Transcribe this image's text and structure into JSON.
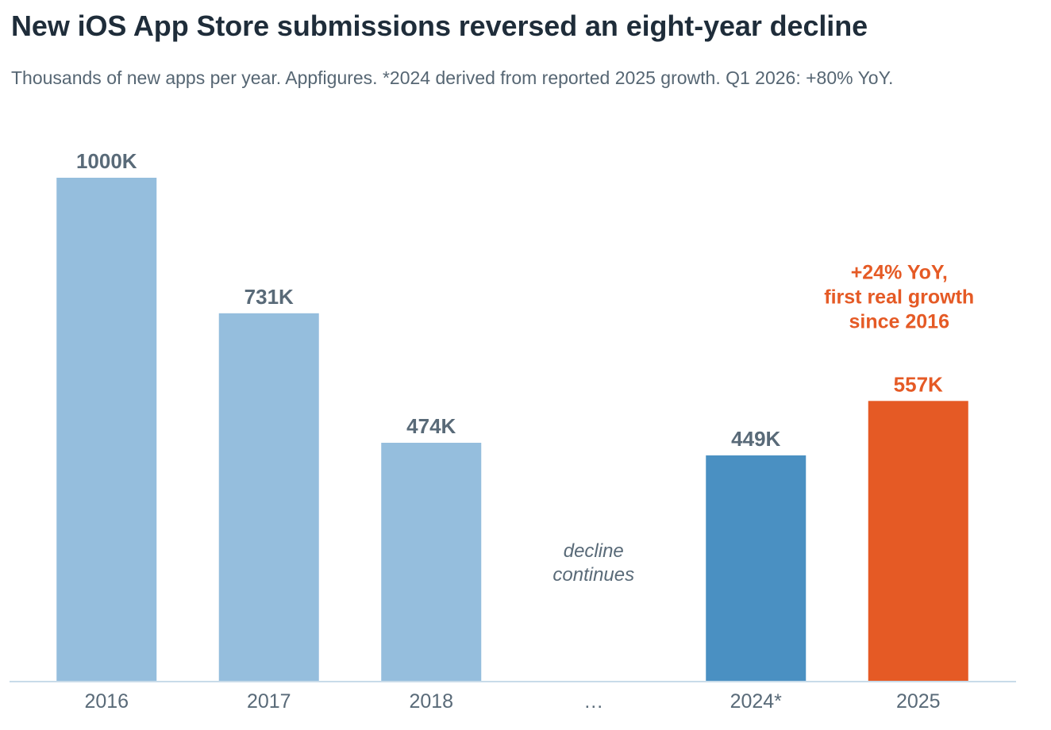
{
  "title": "New iOS App Store submissions reversed an eight-year decline",
  "subtitle": "Thousands of new apps per year. Appfigures. *2024 derived from reported 2025 growth. Q1 2026: +80% YoY.",
  "colors": {
    "historic": "#95bedd",
    "recent": "#4a90c2",
    "highlight": "#e55a25",
    "label": "#596a78",
    "axis": "#c8dbe9"
  },
  "chart_data": {
    "type": "bar",
    "categories": [
      "2016",
      "2017",
      "2018",
      "…",
      "2024*",
      "2025"
    ],
    "values": [
      1000,
      731,
      474,
      null,
      449,
      557
    ],
    "value_labels": [
      "1000K",
      "731K",
      "474K",
      "",
      "449K",
      "557K"
    ],
    "bar_color_keys": [
      "historic",
      "historic",
      "historic",
      "",
      "recent",
      "highlight"
    ],
    "ylim": [
      0,
      1000
    ],
    "grid": false,
    "xlabel": "",
    "ylabel": "",
    "gap_note": [
      "decline",
      "continues"
    ],
    "annotation": [
      "+24% YoY,",
      "first real growth",
      "since 2016"
    ]
  }
}
